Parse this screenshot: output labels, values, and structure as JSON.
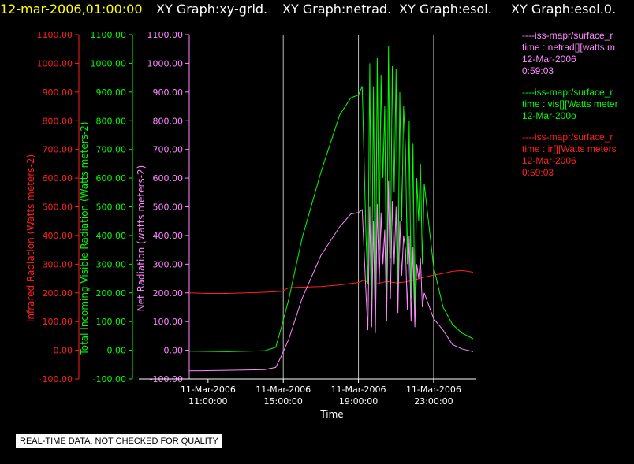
{
  "header": {
    "time": "12-mar-2006,01:00:00",
    "graphs": [
      "XY Graph:xy-grid.",
      "XY Graph:netrad.",
      "XY Graph:esol.",
      "XY Graph:esol.0."
    ]
  },
  "quality_note": "REAL-TIME DATA, NOT CHECKED FOR QUALITY",
  "legend": [
    {
      "lines": [
        "----iss-mapr/surface_r",
        "time : netrad[][watts m",
        "12-Mar-2006",
        "0:59:03"
      ],
      "color": "#ff88ff"
    },
    {
      "lines": [
        "----iss-mapr/surface_r",
        "time : vis[][Watts meter",
        "12-Mar-200o"
      ],
      "color": "#00ff00"
    },
    {
      "lines": [
        "----iss-mapr/surface_r",
        "time : ir[][Watts meters",
        "12-Mar-2006",
        "0:59:03"
      ],
      "color": "#ff2020"
    }
  ],
  "chart_data": {
    "type": "line",
    "xlabel": "Time",
    "x_ticks": [
      {
        "date": "11-Mar-2006",
        "time": "11:00:00"
      },
      {
        "date": "11-Mar-2006",
        "time": "15:00:00"
      },
      {
        "date": "11-Mar-2006",
        "time": "19:00:00"
      },
      {
        "date": "11-Mar-2006",
        "time": "23:00:00"
      }
    ],
    "x_range_hours": [
      10.0,
      25.1
    ],
    "gridline_hours": [
      15,
      19,
      23
    ],
    "y_axes": [
      {
        "label": "Infrared Radiation (Watts meters-2)",
        "color": "#ff2020",
        "ticks": [
          "1100.00",
          "1000.00",
          "900.00",
          "800.00",
          "700.00",
          "600.00",
          "500.00",
          "400.00",
          "300.00",
          "200.00",
          "100.00",
          "0.00",
          "-100.00"
        ]
      },
      {
        "label": "Total Incoming Visible Radiation (Watts meters-2)",
        "color": "#00ff00",
        "ticks": [
          "1100.00",
          "1000.00",
          "900.00",
          "800.00",
          "700.00",
          "600.00",
          "500.00",
          "400.00",
          "300.00",
          "200.00",
          "100.00",
          "0.00",
          "-100.00"
        ]
      },
      {
        "label": "Net Radiation (watts meters-2)",
        "color": "#ff88ff",
        "ticks": [
          "1100.00",
          "1000.00",
          "900.00",
          "800.00",
          "700.00",
          "600.00",
          "500.00",
          "400.00",
          "300.00",
          "200.00",
          "100.00",
          "0.00",
          "-100.00"
        ]
      }
    ],
    "ylim": [
      -100,
      1100
    ],
    "series": [
      {
        "name": "ir",
        "color": "#ff2020",
        "x": [
          10.0,
          11,
          12,
          13,
          14,
          14.9,
          15.3,
          16,
          17,
          18,
          19,
          19.3,
          19.6,
          20,
          20.5,
          21,
          21.5,
          22,
          22.5,
          23,
          23.5,
          24,
          24.5,
          25.1
        ],
        "y": [
          200,
          198,
          198,
          200,
          202,
          205,
          218,
          220,
          222,
          228,
          236,
          245,
          230,
          232,
          240,
          235,
          238,
          245,
          255,
          262,
          268,
          275,
          278,
          272
        ]
      },
      {
        "name": "vis",
        "color": "#00ff00",
        "x": [
          10.0,
          12,
          14,
          14.6,
          14.9,
          15.3,
          16,
          17,
          18,
          18.6,
          19,
          19.2,
          19.4,
          19.5,
          19.6,
          19.7,
          19.8,
          19.9,
          20,
          20.1,
          20.2,
          20.3,
          20.4,
          20.5,
          20.6,
          20.7,
          20.8,
          20.9,
          21,
          21.1,
          21.2,
          21.3,
          21.4,
          21.5,
          21.6,
          21.7,
          21.8,
          21.9,
          22,
          22.1,
          22.2,
          22.3,
          22.4,
          22.5,
          23,
          23.5,
          24,
          24.5,
          25.1
        ],
        "y": [
          -3,
          -5,
          -2,
          10,
          80,
          180,
          390,
          620,
          820,
          880,
          890,
          920,
          400,
          230,
          1000,
          180,
          920,
          120,
          1020,
          350,
          960,
          600,
          850,
          150,
          1060,
          320,
          990,
          550,
          980,
          200,
          900,
          450,
          850,
          700,
          300,
          800,
          180,
          720,
          100,
          600,
          450,
          650,
          300,
          580,
          290,
          150,
          90,
          60,
          40
        ]
      },
      {
        "name": "netrad",
        "color": "#ff88ff",
        "x": [
          10.0,
          12,
          14,
          14.6,
          14.9,
          15.3,
          16,
          17,
          18,
          18.6,
          19,
          19.2,
          19.4,
          19.5,
          19.6,
          19.7,
          19.8,
          19.9,
          20,
          20.1,
          20.2,
          20.3,
          20.4,
          20.5,
          20.6,
          20.7,
          20.8,
          20.9,
          21,
          21.1,
          21.2,
          21.3,
          21.4,
          21.5,
          21.6,
          21.7,
          21.8,
          21.9,
          22,
          22.1,
          22.2,
          22.3,
          22.4,
          22.5,
          23,
          23.5,
          24,
          24.5,
          25.1
        ],
        "y": [
          -72,
          -70,
          -68,
          -60,
          -20,
          40,
          180,
          330,
          430,
          475,
          480,
          490,
          200,
          70,
          500,
          80,
          450,
          60,
          510,
          230,
          480,
          300,
          420,
          100,
          590,
          180,
          520,
          300,
          500,
          130,
          450,
          260,
          400,
          350,
          140,
          400,
          100,
          360,
          80,
          300,
          250,
          320,
          150,
          200,
          110,
          70,
          20,
          5,
          -5
        ]
      }
    ]
  }
}
